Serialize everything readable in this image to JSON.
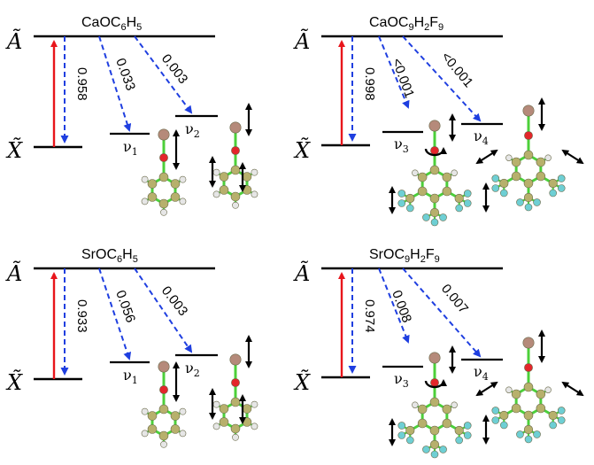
{
  "panels": [
    {
      "id": "caoc6h5",
      "title": {
        "base": "CaOC",
        "s1": "6",
        "mid": "H",
        "s2": "5"
      },
      "upper_state": "Ã",
      "lower_state": "X̃",
      "branching": [
        "0.958",
        "0.033",
        "0.003"
      ],
      "modes": [
        {
          "sym": "ν",
          "sub": "1"
        },
        {
          "sym": "ν",
          "sub": "2"
        }
      ]
    },
    {
      "id": "caoc9h2f9",
      "title": {
        "base": "CaOC",
        "s1": "9",
        "mid": "H",
        "s2": "2",
        "mid2": "F",
        "s3": "9"
      },
      "upper_state": "Ã",
      "lower_state": "X̃",
      "branching": [
        "0.998",
        "<0.001",
        "<0.001"
      ],
      "modes": [
        {
          "sym": "ν",
          "sub": "3"
        },
        {
          "sym": "ν",
          "sub": "4"
        }
      ]
    },
    {
      "id": "sroc6h5",
      "title": {
        "base": "SrOC",
        "s1": "6",
        "mid": "H",
        "s2": "5"
      },
      "upper_state": "Ã",
      "lower_state": "X̃",
      "branching": [
        "0.933",
        "0.056",
        "0.003"
      ],
      "modes": [
        {
          "sym": "ν",
          "sub": "1"
        },
        {
          "sym": "ν",
          "sub": "2"
        }
      ]
    },
    {
      "id": "sroc9h2f9",
      "title": {
        "base": "SrOC",
        "s1": "9",
        "mid": "H",
        "s2": "2",
        "mid2": "F",
        "s3": "9"
      },
      "upper_state": "Ã",
      "lower_state": "X̃",
      "branching": [
        "0.974",
        "0.008",
        "0.007"
      ],
      "modes": [
        {
          "sym": "ν",
          "sub": "3"
        },
        {
          "sym": "ν",
          "sub": "4"
        }
      ]
    }
  ],
  "colors": {
    "excitation_arrow": "#e8151b",
    "decay_arrow": "#1f3fe0",
    "level_line": "#000000",
    "bond": "#4cd03a",
    "carbon_atom": "#b7b06c",
    "metal_atom": "#b58a7a",
    "oxygen_atom": "#e3262b",
    "hydrogen_atom": "#e6e6e6",
    "fluorine_atom": "#6ecfd4"
  }
}
